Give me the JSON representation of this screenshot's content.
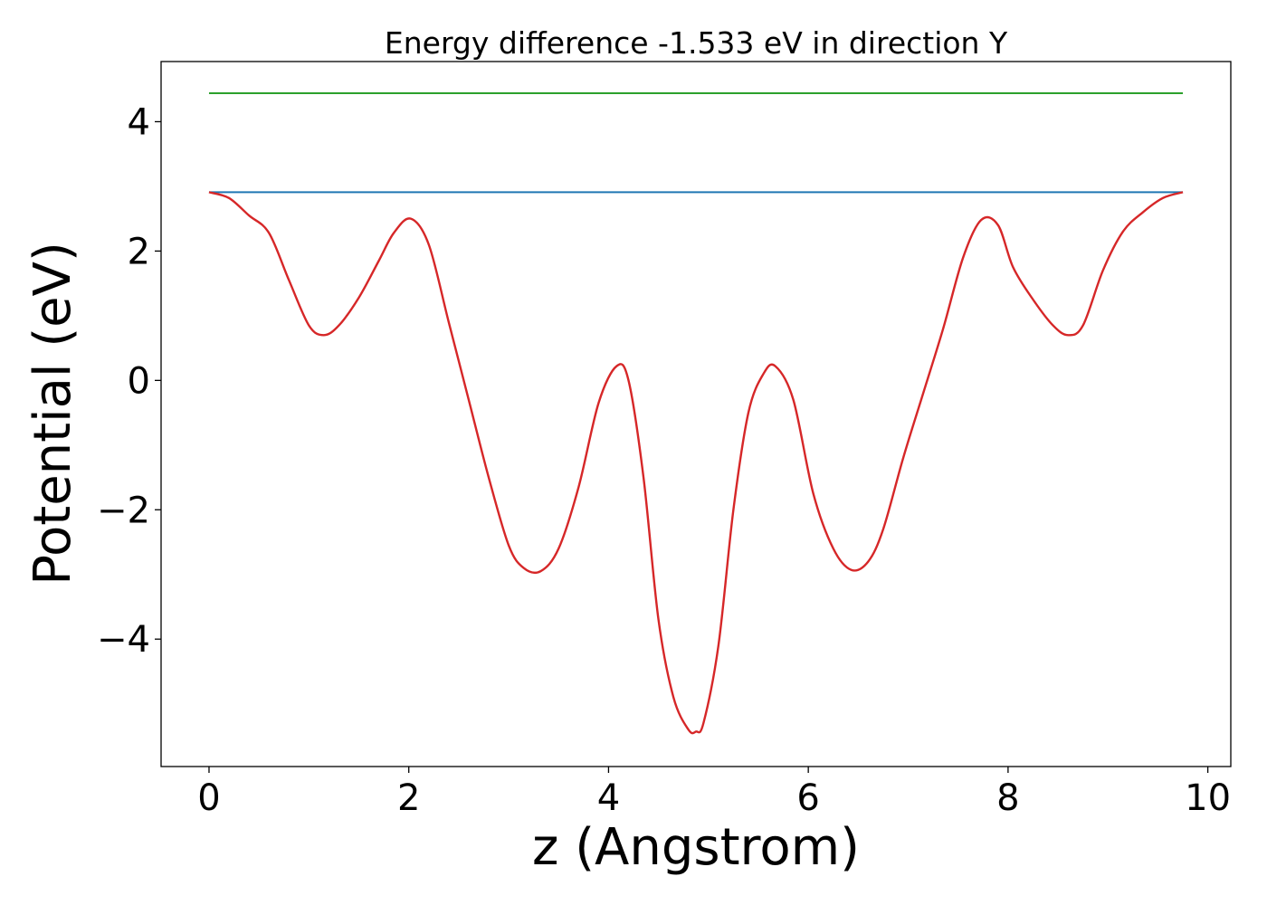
{
  "chart_data": {
    "type": "line",
    "title": "Energy difference -1.533 eV in direction Y",
    "xlabel": "z (Angstrom)",
    "ylabel": "Potential (eV)",
    "xlim": [
      -0.48,
      10.23
    ],
    "ylim": [
      -5.97,
      4.93
    ],
    "x_ticks": [
      0,
      2,
      4,
      6,
      8,
      10
    ],
    "x_tick_labels": [
      "0",
      "2",
      "4",
      "6",
      "8",
      "10"
    ],
    "y_ticks": [
      -4,
      -2,
      0,
      2,
      4
    ],
    "y_tick_labels": [
      "−4",
      "−2",
      "0",
      "2",
      "4"
    ],
    "grid": false,
    "series": [
      {
        "color": "#2ca02c",
        "x": [
          0,
          9.75
        ],
        "y": [
          4.44,
          4.44
        ]
      },
      {
        "color": "#1f77b4",
        "x": [
          0,
          9.75
        ],
        "y": [
          2.91,
          2.91
        ]
      },
      {
        "color": "#d62728",
        "x": [
          0,
          0.2,
          0.4,
          0.6,
          0.8,
          1.0,
          1.15,
          1.3,
          1.5,
          1.7,
          1.85,
          2.02,
          2.2,
          2.4,
          2.6,
          2.8,
          3.0,
          3.15,
          3.32,
          3.5,
          3.7,
          3.9,
          4.08,
          4.2,
          4.35,
          4.5,
          4.65,
          4.8,
          4.875,
          4.95,
          5.1,
          5.25,
          5.4,
          5.55,
          5.67,
          5.85,
          6.05,
          6.25,
          6.43,
          6.6,
          6.75,
          6.95,
          7.15,
          7.35,
          7.55,
          7.73,
          7.9,
          8.05,
          8.25,
          8.45,
          8.6,
          8.75,
          8.95,
          9.15,
          9.35,
          9.55,
          9.75
        ],
        "y": [
          2.91,
          2.82,
          2.55,
          2.28,
          1.55,
          0.85,
          0.7,
          0.85,
          1.28,
          1.85,
          2.28,
          2.5,
          2.1,
          0.9,
          -0.3,
          -1.5,
          -2.55,
          -2.9,
          -2.95,
          -2.6,
          -1.65,
          -0.35,
          0.22,
          0.0,
          -1.5,
          -3.7,
          -4.9,
          -5.4,
          -5.43,
          -5.3,
          -4.1,
          -2.0,
          -0.5,
          0.1,
          0.22,
          -0.3,
          -1.75,
          -2.6,
          -2.93,
          -2.8,
          -2.3,
          -1.2,
          -0.2,
          0.8,
          1.9,
          2.48,
          2.4,
          1.75,
          1.25,
          0.85,
          0.7,
          0.85,
          1.7,
          2.3,
          2.6,
          2.82,
          2.91
        ]
      }
    ]
  }
}
